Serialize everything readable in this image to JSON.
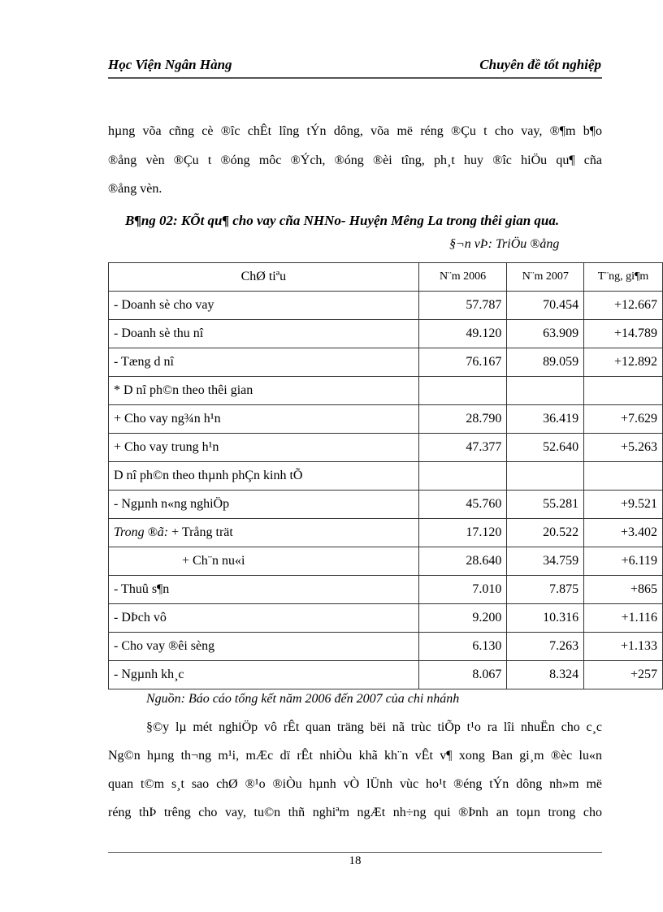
{
  "header": {
    "left": "Học Viện Ngân Hàng",
    "right": "Chuyên đề tốt nghiệp"
  },
  "intro_lines": [
    "hµng võa cñng cè ®­îc  chÊt l­îng  tÝn dông, võa më réng ®Çu t­  cho vay, ®¶m b¶o",
    "®ång vèn ®Çu t­  ®óng môc ®Ých, ®óng ®èi t­îng,  ph¸t huy ®­îc  hiÖu qu¶ cña",
    "®ång vèn."
  ],
  "table": {
    "title": "B¶ng 02: KÕt qu¶ cho vay cña NHNo- Huyện Mêng   La trong thêi gian qua.",
    "unit": "§¬n vÞ: TriÖu ®ång",
    "headers": [
      "ChØ tiªu",
      "N¨m 2006",
      "N¨m 2007",
      "T¨ng, gi¶m"
    ],
    "rows": [
      [
        "- Doanh sè cho vay",
        "57.787",
        "70.454",
        "+12.667"
      ],
      [
        "- Doanh sè thu nî",
        "49.120",
        "63.909",
        "+14.789"
      ],
      [
        "- Tæng d­ nî",
        "76.167",
        "89.059",
        "+12.892"
      ],
      [
        "* D­ nî ph©n theo thêi gian",
        "",
        "",
        ""
      ],
      [
        " + Cho vay ng¾n h¹n",
        "28.790",
        "36.419",
        "+7.629"
      ],
      [
        " + Cho vay trung h¹n",
        "47.377",
        "52.640",
        "+5.263"
      ],
      [
        " D­ nî ph©n theo thµnh phÇn kinh tÕ",
        "",
        "",
        ""
      ],
      [
        "- Ngµnh n«ng nghiÖp",
        "45.760",
        "55.281",
        "+9.521"
      ],
      [
        "+ Trång trät",
        "17.120",
        "20.522",
        "+3.402"
      ],
      [
        "+ Ch¨n nu«i",
        "28.640",
        "34.759",
        "+6.119"
      ],
      [
        "- Thuû s¶n",
        "7.010",
        "7.875",
        "+865"
      ],
      [
        "- DÞch vô",
        "9.200",
        "10.316",
        "+1.116"
      ],
      [
        "- Cho vay ®êi sèng",
        "6.130",
        "7.263",
        "+1.133"
      ],
      [
        "- Ngµnh kh¸c",
        "8.067",
        "8.324",
        "+257"
      ]
    ],
    "row9_prefix": "Trong ®ã: ",
    "source": "Nguồn: Báo cáo tổng kết năm 2006 đến 2007 của chi nhánh"
  },
  "body_lines": [
    "§©y lµ mét nghiÖp vô rÊt quan träng bëi nã trùc tiÕp t¹o ra lîi nhuËn cho c¸c",
    "Ng©n hµng th­¬ng  m¹i, mÆc dï rÊt nhiÒu khã kh¨n vÊt v¶ xong Ban gi¸m ®èc lu«n",
    "quan t©m s¸t sao chØ ®¹o ®iÒu hµnh vÒ lÜnh vùc ho¹t ®éng tÝn dông nh»m më",
    "réng thÞ tr­êng  cho vay, tu©n thñ nghiªm ngÆt nh÷ng qui ®Þnh an toµn trong cho"
  ],
  "footer": {
    "page_number": "18"
  }
}
